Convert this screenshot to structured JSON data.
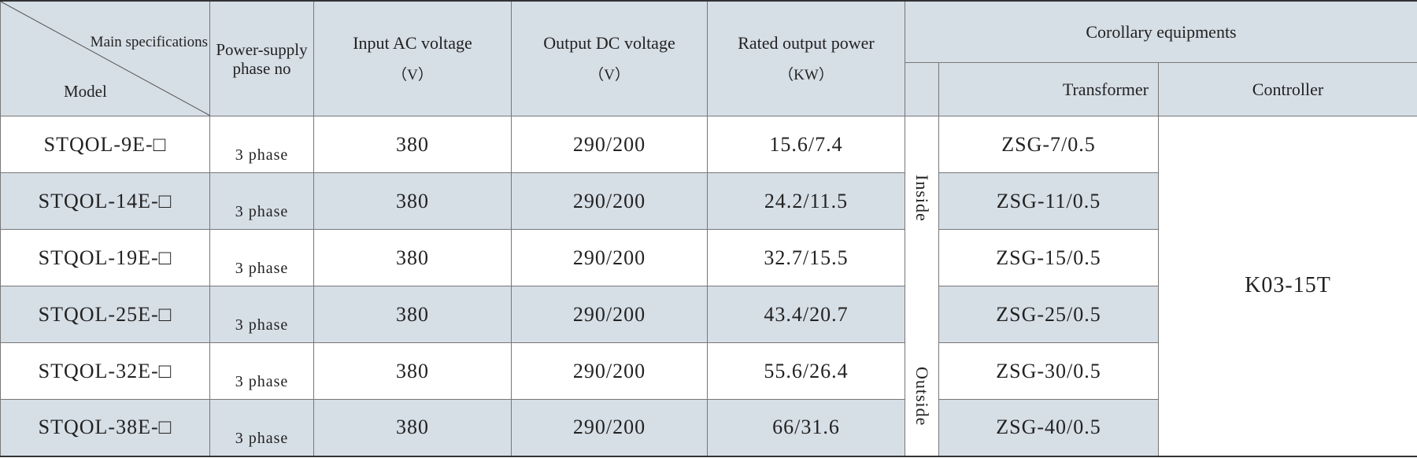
{
  "header": {
    "main_specifications": "Main specifications",
    "model": "Model",
    "phase": "Power-supply phase no",
    "input": "Input AC voltage",
    "input_unit": "（V）",
    "output": "Output DC voltage",
    "output_unit": "（V）",
    "power": "Rated output power",
    "power_unit": "（KW）",
    "corollary": "Corollary equipments",
    "transformer": "Transformer",
    "controller": "Controller"
  },
  "table": {
    "rows": [
      [
        "STQOL-9E-□",
        "3 phase",
        "380",
        "290/200",
        "15.6/7.4",
        "ZSG-7/0.5"
      ],
      [
        "STQOL-14E-□",
        "3 phase",
        "380",
        "290/200",
        "24.2/11.5",
        "ZSG-11/0.5"
      ],
      [
        "STQOL-19E-□",
        "3 phase",
        "380",
        "290/200",
        "32.7/15.5",
        "ZSG-15/0.5"
      ],
      [
        "STQOL-25E-□",
        "3 phase",
        "380",
        "290/200",
        "43.4/20.7",
        "ZSG-25/0.5"
      ],
      [
        "STQOL-32E-□",
        "3 phase",
        "380",
        "290/200",
        "55.6/26.4",
        "ZSG-30/0.5"
      ],
      [
        "STQOL-38E-□",
        "3 phase",
        "380",
        "290/200",
        "66/31.6",
        "ZSG-40/0.5"
      ]
    ],
    "inside": "Inside",
    "outside": "Outside",
    "controller": "K03-15T"
  }
}
